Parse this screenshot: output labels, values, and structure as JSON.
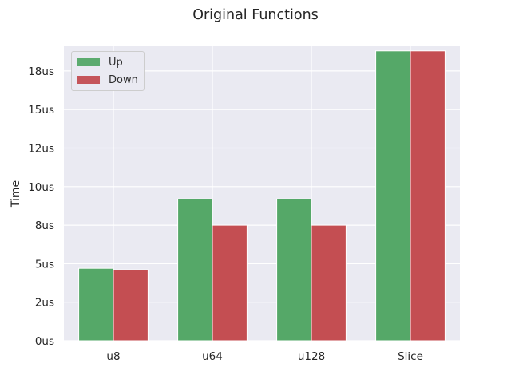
{
  "chart_data": {
    "type": "bar",
    "title": "Original Functions",
    "ylabel": "Time",
    "xlabel": "",
    "categories": [
      "u8",
      "u64",
      "u128",
      "Slice"
    ],
    "series": [
      {
        "name": "Up",
        "color": "#55a868",
        "values": [
          4.7,
          9.2,
          9.2,
          18.8
        ]
      },
      {
        "name": "Down",
        "color": "#c44e52",
        "values": [
          4.6,
          7.5,
          7.5,
          18.8
        ]
      }
    ],
    "yticks": [
      0,
      2.5,
      5,
      7.5,
      10,
      12.5,
      15,
      17.5
    ],
    "ytick_labels": [
      "0us",
      "2us",
      "5us",
      "8us",
      "10us",
      "12us",
      "15us",
      "18us"
    ],
    "ylim": [
      0,
      19.1
    ],
    "grid": true,
    "legend_position": "top-left",
    "colors": {
      "background": "#eaeaf2",
      "grid": "#ffffff"
    }
  }
}
